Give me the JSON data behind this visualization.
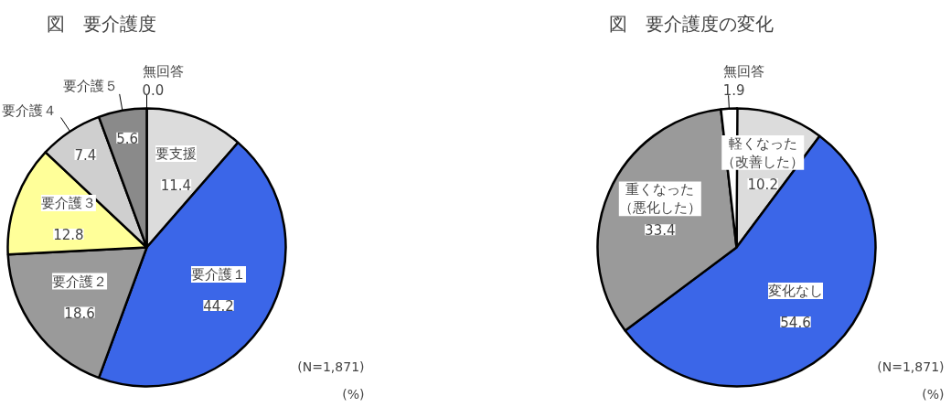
{
  "chart_data": [
    {
      "type": "pie",
      "title": "図　要介護度",
      "categories": [
        "要支援",
        "要介護１",
        "要介護２",
        "要介護３",
        "要介護４",
        "要介護５",
        "無回答"
      ],
      "values": [
        11.4,
        44.2,
        18.6,
        12.8,
        7.4,
        5.6,
        0.0
      ],
      "value_labels": [
        "11.4",
        "44.2",
        "18.6",
        "12.8",
        "7.4",
        "5.6",
        "0.0"
      ],
      "colors": [
        "#dcdcdc",
        "#3b66e8",
        "#9a9a9a",
        "#ffff99",
        "#cfcfcf",
        "#8a8a8a",
        "#ffffff"
      ],
      "annotations": [
        "(N=1,871)",
        "(%)"
      ]
    },
    {
      "type": "pie",
      "title": "図　要介護度の変化",
      "categories": [
        "軽くなった（改善した）",
        "変化なし",
        "重くなった（悪化した）",
        "無回答"
      ],
      "values": [
        10.2,
        54.6,
        33.4,
        1.9
      ],
      "colors": [
        "#dcdcdc",
        "#3b66e8",
        "#9a9a9a",
        "#ffffff"
      ],
      "data_labels": true,
      "annotations": [
        "(N=1,871)",
        "(%)"
      ]
    }
  ]
}
